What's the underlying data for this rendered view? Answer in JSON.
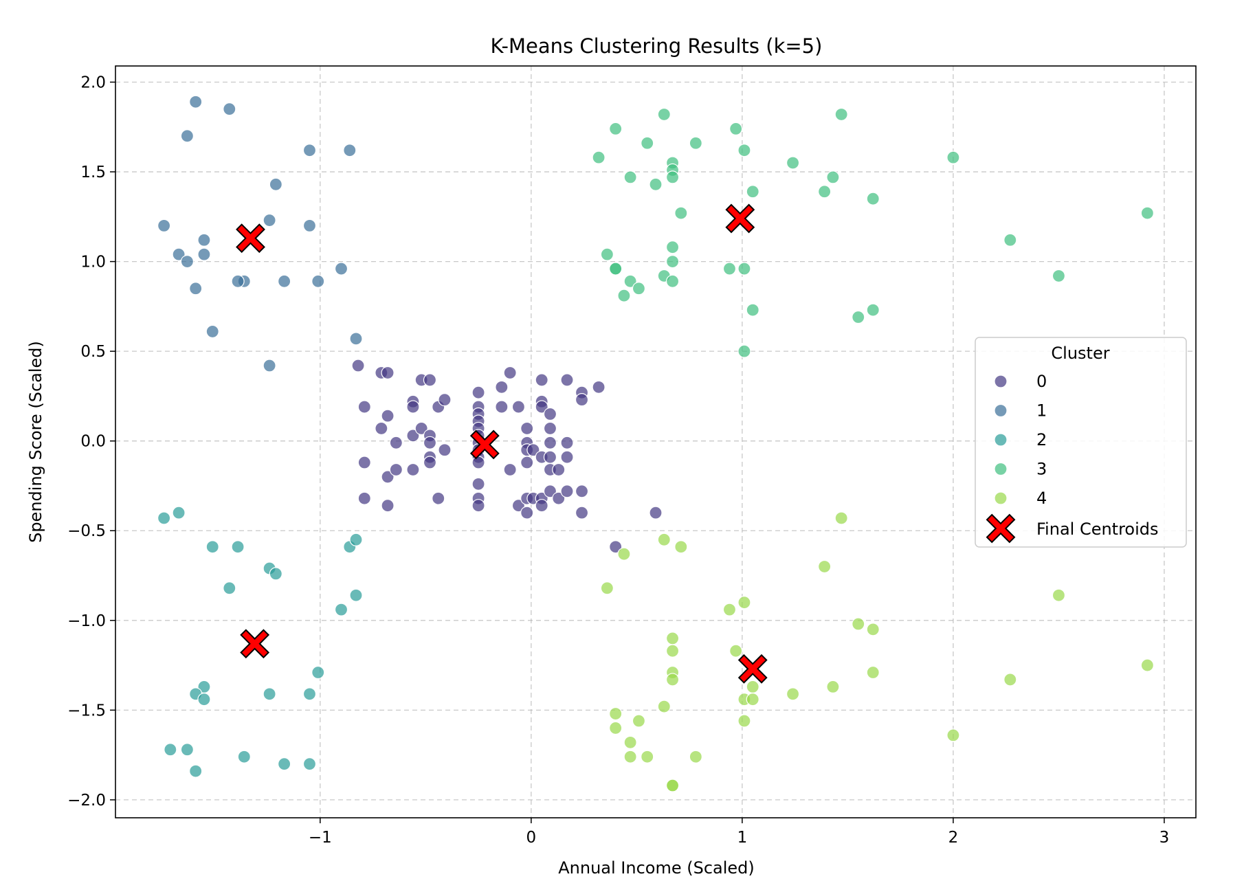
{
  "chart_data": {
    "type": "scatter",
    "title": "K-Means Clustering Results (k=5)",
    "xlabel": "Annual Income (Scaled)",
    "ylabel": "Spending Score (Scaled)",
    "xlim": [
      -1.97,
      3.15
    ],
    "ylim": [
      -2.1,
      2.09
    ],
    "xticks": [
      -1,
      0,
      1,
      2,
      3
    ],
    "xtick_labels": [
      "−1",
      "0",
      "1",
      "2",
      "3"
    ],
    "yticks": [
      2.0,
      1.5,
      1.0,
      0.5,
      0.0,
      -0.5,
      -1.0,
      -1.5,
      -2.0
    ],
    "ytick_labels": [
      "2.0",
      "1.5",
      "1.0",
      "0.5",
      "0.0",
      "−0.5",
      "−1.0",
      "−1.5",
      "−2.0"
    ],
    "grid": true,
    "legend": {
      "title": "Cluster",
      "placement": "center-right",
      "centroid_label": "Final Centroids"
    },
    "series": [
      {
        "name": "0",
        "color": "#443983",
        "points": [
          [
            -0.82,
            0.42
          ],
          [
            -0.79,
            0.19
          ],
          [
            -0.79,
            -0.12
          ],
          [
            -0.79,
            -0.32
          ],
          [
            -0.71,
            0.38
          ],
          [
            -0.68,
            0.38
          ],
          [
            -0.71,
            0.07
          ],
          [
            -0.68,
            0.14
          ],
          [
            -0.68,
            -0.2
          ],
          [
            -0.68,
            -0.36
          ],
          [
            -0.64,
            -0.01
          ],
          [
            -0.64,
            -0.16
          ],
          [
            -0.56,
            0.22
          ],
          [
            -0.56,
            0.19
          ],
          [
            -0.56,
            0.03
          ],
          [
            -0.56,
            -0.16
          ],
          [
            -0.52,
            0.34
          ],
          [
            -0.52,
            0.07
          ],
          [
            -0.48,
            0.34
          ],
          [
            -0.48,
            0.03
          ],
          [
            -0.48,
            -0.01
          ],
          [
            -0.48,
            -0.09
          ],
          [
            -0.48,
            -0.12
          ],
          [
            -0.44,
            0.19
          ],
          [
            -0.44,
            -0.32
          ],
          [
            -0.41,
            0.23
          ],
          [
            -0.41,
            -0.05
          ],
          [
            -0.25,
            0.27
          ],
          [
            -0.25,
            0.19
          ],
          [
            -0.25,
            0.15
          ],
          [
            -0.25,
            0.11
          ],
          [
            -0.25,
            0.07
          ],
          [
            -0.25,
            0.03
          ],
          [
            -0.25,
            -0.01
          ],
          [
            -0.25,
            -0.05
          ],
          [
            -0.25,
            -0.09
          ],
          [
            -0.25,
            -0.12
          ],
          [
            -0.25,
            -0.24
          ],
          [
            -0.25,
            -0.32
          ],
          [
            -0.25,
            -0.36
          ],
          [
            -0.14,
            0.3
          ],
          [
            -0.14,
            0.19
          ],
          [
            -0.1,
            0.38
          ],
          [
            -0.1,
            -0.16
          ],
          [
            -0.06,
            0.19
          ],
          [
            -0.06,
            -0.36
          ],
          [
            -0.02,
            0.07
          ],
          [
            -0.02,
            -0.01
          ],
          [
            -0.02,
            -0.05
          ],
          [
            -0.02,
            -0.12
          ],
          [
            -0.02,
            -0.32
          ],
          [
            -0.02,
            -0.4
          ],
          [
            0.01,
            -0.05
          ],
          [
            0.01,
            -0.32
          ],
          [
            0.05,
            0.34
          ],
          [
            0.05,
            0.22
          ],
          [
            0.05,
            0.19
          ],
          [
            0.05,
            -0.09
          ],
          [
            0.05,
            -0.32
          ],
          [
            0.05,
            -0.36
          ],
          [
            0.09,
            0.15
          ],
          [
            0.09,
            0.07
          ],
          [
            0.09,
            -0.01
          ],
          [
            0.09,
            -0.09
          ],
          [
            0.09,
            -0.16
          ],
          [
            0.09,
            -0.28
          ],
          [
            0.13,
            -0.16
          ],
          [
            0.13,
            -0.32
          ],
          [
            0.17,
            0.34
          ],
          [
            0.17,
            -0.01
          ],
          [
            0.17,
            -0.09
          ],
          [
            0.17,
            -0.28
          ],
          [
            0.24,
            0.27
          ],
          [
            0.24,
            0.23
          ],
          [
            0.24,
            -0.28
          ],
          [
            0.24,
            -0.4
          ],
          [
            0.32,
            0.3
          ],
          [
            0.59,
            -0.4
          ],
          [
            0.4,
            -0.59
          ]
        ]
      },
      {
        "name": "1",
        "color": "#3b6f99",
        "points": [
          [
            -1.59,
            1.89
          ],
          [
            -1.43,
            1.85
          ],
          [
            -1.63,
            1.7
          ],
          [
            -1.05,
            1.62
          ],
          [
            -0.86,
            1.62
          ],
          [
            -1.21,
            1.43
          ],
          [
            -1.24,
            1.23
          ],
          [
            -1.74,
            1.2
          ],
          [
            -1.05,
            1.2
          ],
          [
            -1.55,
            1.12
          ],
          [
            -1.55,
            1.04
          ],
          [
            -1.67,
            1.04
          ],
          [
            -1.63,
            1.0
          ],
          [
            -0.9,
            0.96
          ],
          [
            -1.36,
            0.89
          ],
          [
            -1.39,
            0.89
          ],
          [
            -1.17,
            0.89
          ],
          [
            -1.01,
            0.89
          ],
          [
            -1.59,
            0.85
          ],
          [
            -1.51,
            0.61
          ],
          [
            -0.83,
            0.57
          ],
          [
            -1.24,
            0.42
          ]
        ]
      },
      {
        "name": "2",
        "color": "#2a9d98",
        "points": [
          [
            -1.74,
            -0.43
          ],
          [
            -1.67,
            -0.4
          ],
          [
            -1.51,
            -0.59
          ],
          [
            -1.39,
            -0.59
          ],
          [
            -0.86,
            -0.59
          ],
          [
            -0.83,
            -0.55
          ],
          [
            -1.24,
            -0.71
          ],
          [
            -1.21,
            -0.74
          ],
          [
            -1.43,
            -0.82
          ],
          [
            -0.83,
            -0.86
          ],
          [
            -0.9,
            -0.94
          ],
          [
            -1.01,
            -1.29
          ],
          [
            -1.55,
            -1.37
          ],
          [
            -1.59,
            -1.41
          ],
          [
            -1.55,
            -1.44
          ],
          [
            -1.24,
            -1.41
          ],
          [
            -1.05,
            -1.41
          ],
          [
            -1.71,
            -1.72
          ],
          [
            -1.63,
            -1.72
          ],
          [
            -1.36,
            -1.76
          ],
          [
            -1.17,
            -1.8
          ],
          [
            -1.05,
            -1.8
          ],
          [
            -1.59,
            -1.84
          ]
        ]
      },
      {
        "name": "3",
        "color": "#3fbf7f",
        "points": [
          [
            0.63,
            1.82
          ],
          [
            1.47,
            1.82
          ],
          [
            0.4,
            1.74
          ],
          [
            0.97,
            1.74
          ],
          [
            0.55,
            1.66
          ],
          [
            0.78,
            1.66
          ],
          [
            1.01,
            1.62
          ],
          [
            0.32,
            1.58
          ],
          [
            2.0,
            1.58
          ],
          [
            0.67,
            1.55
          ],
          [
            1.24,
            1.55
          ],
          [
            0.67,
            1.51
          ],
          [
            0.67,
            1.47
          ],
          [
            0.47,
            1.47
          ],
          [
            1.43,
            1.47
          ],
          [
            0.59,
            1.43
          ],
          [
            1.39,
            1.39
          ],
          [
            1.05,
            1.39
          ],
          [
            1.62,
            1.35
          ],
          [
            0.71,
            1.27
          ],
          [
            2.92,
            1.27
          ],
          [
            2.27,
            1.12
          ],
          [
            0.67,
            1.08
          ],
          [
            0.36,
            1.04
          ],
          [
            0.67,
            1.0
          ],
          [
            0.4,
            0.96
          ],
          [
            0.4,
            0.96
          ],
          [
            0.94,
            0.96
          ],
          [
            1.01,
            0.96
          ],
          [
            0.63,
            0.92
          ],
          [
            2.5,
            0.92
          ],
          [
            0.47,
            0.89
          ],
          [
            0.67,
            0.89
          ],
          [
            0.51,
            0.85
          ],
          [
            0.44,
            0.81
          ],
          [
            1.05,
            0.73
          ],
          [
            1.62,
            0.73
          ],
          [
            1.55,
            0.69
          ],
          [
            1.01,
            0.5
          ]
        ]
      },
      {
        "name": "4",
        "color": "#99d94a",
        "points": [
          [
            1.47,
            -0.43
          ],
          [
            0.63,
            -0.55
          ],
          [
            0.71,
            -0.59
          ],
          [
            0.44,
            -0.63
          ],
          [
            1.39,
            -0.7
          ],
          [
            0.36,
            -0.82
          ],
          [
            2.5,
            -0.86
          ],
          [
            1.01,
            -0.9
          ],
          [
            0.94,
            -0.94
          ],
          [
            1.55,
            -1.02
          ],
          [
            1.62,
            -1.05
          ],
          [
            0.67,
            -1.1
          ],
          [
            0.67,
            -1.17
          ],
          [
            0.97,
            -1.17
          ],
          [
            2.92,
            -1.25
          ],
          [
            0.67,
            -1.29
          ],
          [
            1.62,
            -1.29
          ],
          [
            0.67,
            -1.33
          ],
          [
            2.27,
            -1.33
          ],
          [
            1.05,
            -1.37
          ],
          [
            1.43,
            -1.37
          ],
          [
            1.24,
            -1.41
          ],
          [
            1.01,
            -1.44
          ],
          [
            1.05,
            -1.44
          ],
          [
            0.63,
            -1.48
          ],
          [
            0.4,
            -1.52
          ],
          [
            0.51,
            -1.56
          ],
          [
            1.01,
            -1.56
          ],
          [
            0.4,
            -1.6
          ],
          [
            2.0,
            -1.64
          ],
          [
            0.47,
            -1.68
          ],
          [
            0.47,
            -1.76
          ],
          [
            0.55,
            -1.76
          ],
          [
            0.78,
            -1.76
          ],
          [
            0.67,
            -1.92
          ],
          [
            0.67,
            -1.92
          ]
        ]
      }
    ],
    "centroids": [
      [
        -1.33,
        1.13
      ],
      [
        0.99,
        1.24
      ],
      [
        -0.22,
        -0.02
      ],
      [
        -1.31,
        -1.13
      ],
      [
        1.05,
        -1.27
      ]
    ],
    "centroid_color": "#ff0000"
  }
}
